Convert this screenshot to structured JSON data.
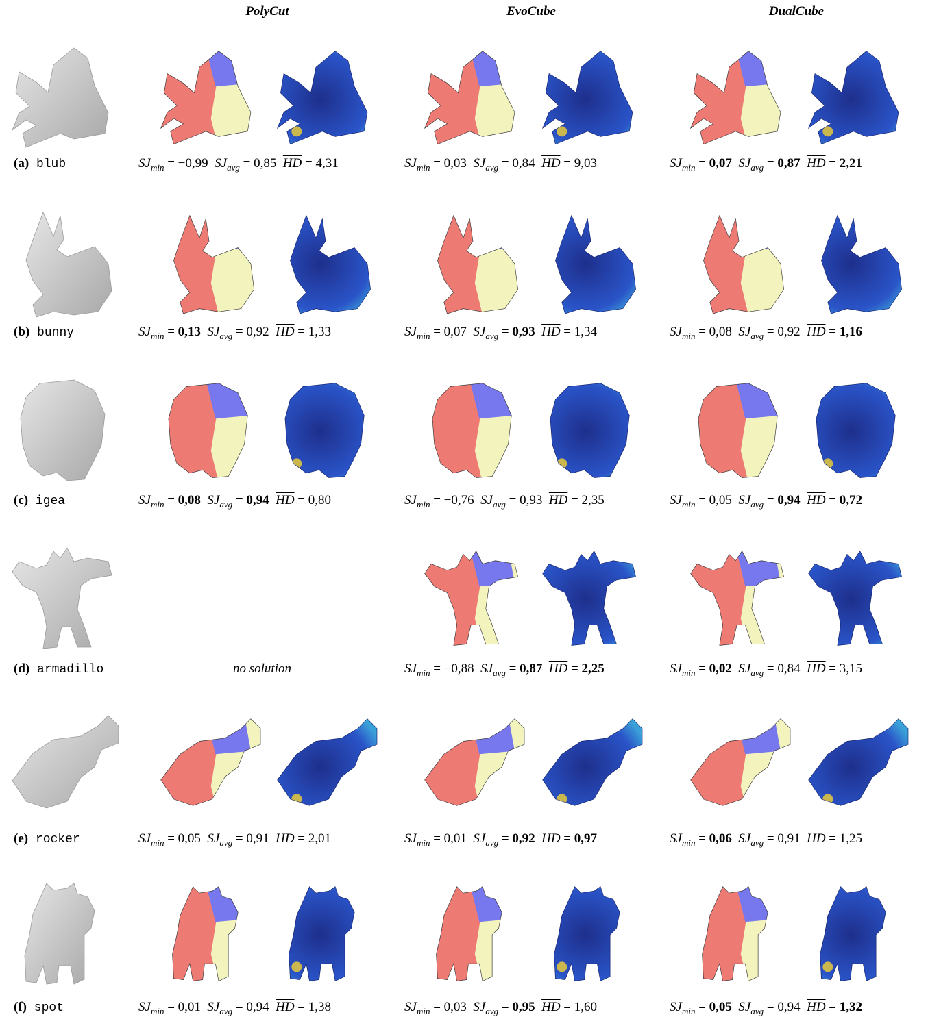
{
  "headers": [
    "PolyCut",
    "EvoCube",
    "DualCube"
  ],
  "colors": {
    "red": "#ee7a74",
    "yellow": "#f3f4bd",
    "blue": "#7878ee",
    "heat_dark": "#1e2f8c",
    "heat_mid": "#2a54c8",
    "heat_hi": "#f2d232",
    "gray": "#c8c8c8"
  },
  "rows": [
    {
      "tag": "(a)",
      "name": "blub",
      "shape": "fish",
      "results": [
        {
          "min": "−0,99",
          "avg": "0,85",
          "hd": "4,31",
          "bold": []
        },
        {
          "min": "0,03",
          "avg": "0,84",
          "hd": "9,03",
          "bold": []
        },
        {
          "min": "0,07",
          "avg": "0,87",
          "hd": "2,21",
          "bold": [
            "min",
            "avg",
            "hd"
          ]
        }
      ]
    },
    {
      "tag": "(b)",
      "name": "bunny",
      "shape": "bunny",
      "results": [
        {
          "min": "0,13",
          "avg": "0,92",
          "hd": "1,33",
          "bold": [
            "min"
          ]
        },
        {
          "min": "0,07",
          "avg": "0,93",
          "hd": "1,34",
          "bold": [
            "avg"
          ]
        },
        {
          "min": "0,08",
          "avg": "0,92",
          "hd": "1,16",
          "bold": [
            "hd"
          ]
        }
      ]
    },
    {
      "tag": "(c)",
      "name": "igea",
      "shape": "head",
      "results": [
        {
          "min": "0,08",
          "avg": "0,94",
          "hd": "0,80",
          "bold": [
            "min",
            "avg"
          ]
        },
        {
          "min": "−0,76",
          "avg": "0,93",
          "hd": "2,35",
          "bold": []
        },
        {
          "min": "0,05",
          "avg": "0,94",
          "hd": "0,72",
          "bold": [
            "avg",
            "hd"
          ]
        }
      ]
    },
    {
      "tag": "(d)",
      "name": "armadillo",
      "shape": "armadillo",
      "no_solution": "no solution",
      "results": [
        null,
        {
          "min": "−0,88",
          "avg": "0,87",
          "hd": "2,25",
          "bold": [
            "avg",
            "hd"
          ]
        },
        {
          "min": "0,02",
          "avg": "0,84",
          "hd": "3,15",
          "bold": [
            "min"
          ]
        }
      ]
    },
    {
      "tag": "(e)",
      "name": "rocker",
      "shape": "rocker",
      "results": [
        {
          "min": "0,05",
          "avg": "0,91",
          "hd": "2,01",
          "bold": []
        },
        {
          "min": "0,01",
          "avg": "0,92",
          "hd": "0,97",
          "bold": [
            "avg",
            "hd"
          ]
        },
        {
          "min": "0,06",
          "avg": "0,91",
          "hd": "1,25",
          "bold": [
            "min"
          ]
        }
      ]
    },
    {
      "tag": "(f)",
      "name": "spot",
      "shape": "cow",
      "results": [
        {
          "min": "0,01",
          "avg": "0,94",
          "hd": "1,38",
          "bold": []
        },
        {
          "min": "0,03",
          "avg": "0,95",
          "hd": "1,60",
          "bold": [
            "avg"
          ]
        },
        {
          "min": "0,05",
          "avg": "0,94",
          "hd": "1,32",
          "bold": [
            "min",
            "hd"
          ]
        }
      ]
    }
  ],
  "metric_text": {
    "sj": "SJ",
    "min": "min",
    "avg": "avg",
    "hd": "HD",
    "eq": " = "
  }
}
